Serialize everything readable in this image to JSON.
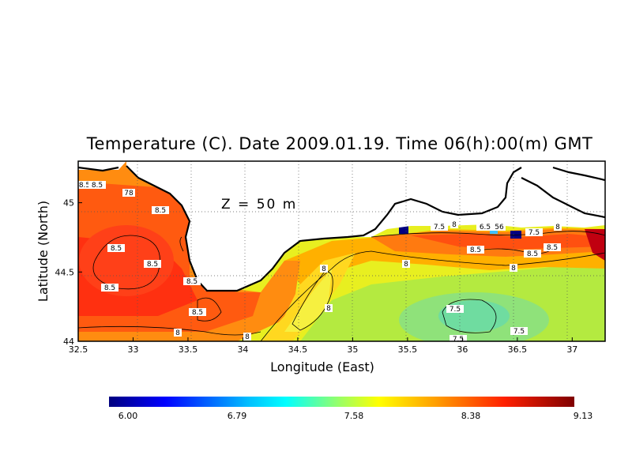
{
  "title": "Temperature (C). Date 2009.01.19. Time 06(h):00(m) GMT",
  "depth_label": "Z = 50 m",
  "axes": {
    "xlabel": "Longitude (East)",
    "ylabel": "Latitude (North)",
    "xticks": [
      "32.5",
      "33",
      "33.5",
      "34",
      "34.5",
      "35",
      "35.5",
      "36",
      "36.5",
      "37"
    ],
    "yticks": [
      "44",
      "44.5",
      "45"
    ],
    "xlim": [
      32.5,
      37.3
    ],
    "ylim": [
      44.0,
      45.3
    ]
  },
  "colorbar": {
    "ticks": [
      "6.00",
      "6.79",
      "7.58",
      "8.38",
      "9.13"
    ],
    "min": 6.0,
    "max": 9.13,
    "colors": [
      "#00007f",
      "#0000ff",
      "#007fff",
      "#00ffff",
      "#7fff7f",
      "#ffff00",
      "#ff7f00",
      "#ff0000",
      "#7f0000"
    ]
  },
  "contour_labels": [
    {
      "text": "8.5"
    },
    {
      "text": "8.5"
    },
    {
      "text": "78"
    },
    {
      "text": "8.5"
    },
    {
      "text": "8.5"
    },
    {
      "text": "8.5"
    },
    {
      "text": "8.5"
    },
    {
      "text": "8.5"
    },
    {
      "text": "8.5"
    },
    {
      "text": "8"
    },
    {
      "text": "8"
    },
    {
      "text": "8"
    },
    {
      "text": "8"
    },
    {
      "text": "8"
    },
    {
      "text": "7.5"
    },
    {
      "text": "8"
    },
    {
      "text": "6.5"
    },
    {
      "text": "56"
    },
    {
      "text": "7.5"
    },
    {
      "text": "8"
    },
    {
      "text": "8.5"
    },
    {
      "text": "8.5"
    },
    {
      "text": "8.5"
    },
    {
      "text": "8"
    },
    {
      "text": "7.5"
    },
    {
      "text": "7.5"
    },
    {
      "text": "7.5"
    }
  ]
}
